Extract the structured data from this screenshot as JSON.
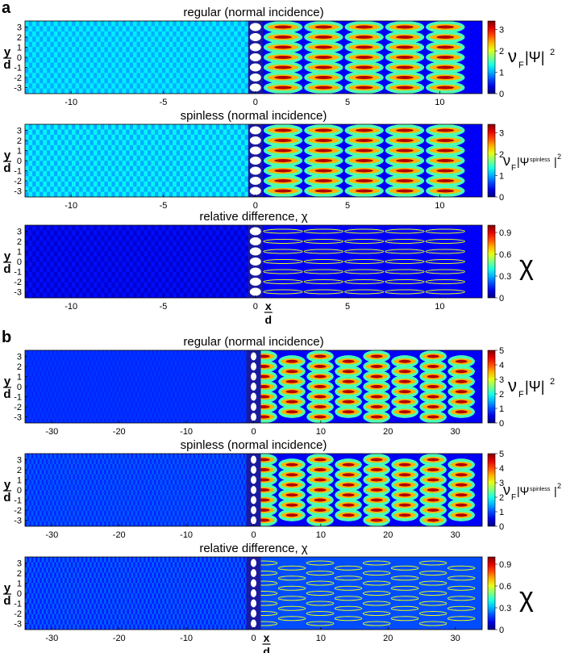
{
  "figure": {
    "type": "heatmap-panels",
    "colormap": "jet"
  },
  "chart_data": [
    {
      "type": "heatmap",
      "part": "a",
      "row": 0,
      "title": "regular (normal incidence)",
      "xlabel": "",
      "ylabel": "y/d",
      "xlim": [
        -12.5,
        12.3
      ],
      "ylim": [
        -3.6,
        3.6
      ],
      "xticks": [
        -10,
        -5,
        0,
        5,
        10
      ],
      "yticks": [
        3,
        2,
        1,
        0,
        -1,
        -2,
        -3
      ],
      "colorbar_ticks": [
        3,
        2,
        1,
        0
      ],
      "colorbar_range": [
        0,
        3.4
      ],
      "colorbar_label": "νF|Ψ|²",
      "left_mean": 1.0,
      "left_amp": 0.25,
      "right_max": 3.4,
      "right_bg": 0.4
    },
    {
      "type": "heatmap",
      "part": "a",
      "row": 1,
      "title": "spinless (normal incidence)",
      "xlabel": "",
      "ylabel": "y/d",
      "xlim": [
        -12.5,
        12.3
      ],
      "ylim": [
        -3.6,
        3.6
      ],
      "xticks": [
        -10,
        -5,
        0,
        5,
        10
      ],
      "yticks": [
        3,
        2,
        1,
        0,
        -1,
        -2,
        -3
      ],
      "colorbar_ticks": [
        3,
        2,
        1,
        0
      ],
      "colorbar_range": [
        0,
        3.4
      ],
      "colorbar_label": "νF|Ψspinless|²",
      "left_mean": 1.0,
      "left_amp": 0.3,
      "right_max": 3.4,
      "right_bg": 0.4
    },
    {
      "type": "heatmap",
      "part": "a",
      "row": 2,
      "title": "relative difference, χ",
      "xlabel": "x/d",
      "ylabel": "y/d",
      "xlim": [
        -12.5,
        12.3
      ],
      "ylim": [
        -3.6,
        3.6
      ],
      "xticks": [
        -10,
        -5,
        0,
        5,
        10
      ],
      "yticks": [
        3,
        2,
        1,
        0,
        -1,
        -2,
        -3
      ],
      "colorbar_ticks": [
        0.9,
        0.6,
        0.3,
        0
      ],
      "colorbar_range": [
        0,
        1.0
      ],
      "colorbar_label": "χ",
      "left_mean": 0.08,
      "left_amp": 0.06,
      "right_max": 0.9,
      "right_bg": 0.12
    },
    {
      "type": "heatmap",
      "part": "b",
      "row": 0,
      "title": "regular (normal incidence)",
      "xlabel": "",
      "ylabel": "y/d",
      "xlim": [
        -34,
        34
      ],
      "ylim": [
        -3.6,
        3.6
      ],
      "xticks": [
        -30,
        -20,
        -10,
        0,
        10,
        20,
        30
      ],
      "yticks": [
        3,
        2,
        1,
        0,
        -1,
        -2,
        -3
      ],
      "colorbar_ticks": [
        5,
        4,
        3,
        2,
        1,
        0
      ],
      "colorbar_range": [
        0,
        5
      ],
      "colorbar_label": "νF|Ψ|²",
      "left_mean": 0.8,
      "left_amp": 0.1,
      "right_max": 5,
      "right_bg": 0.6
    },
    {
      "type": "heatmap",
      "part": "b",
      "row": 1,
      "title": "spinless (normal incidence)",
      "xlabel": "",
      "ylabel": "y/d",
      "xlim": [
        -34,
        34
      ],
      "ylim": [
        -3.6,
        3.6
      ],
      "xticks": [
        -30,
        -20,
        -10,
        0,
        10,
        20,
        30
      ],
      "yticks": [
        3,
        2,
        1,
        0,
        -1,
        -2,
        -3
      ],
      "colorbar_ticks": [
        5,
        4,
        3,
        2,
        1,
        0
      ],
      "colorbar_range": [
        0,
        5
      ],
      "colorbar_label": "νF|Ψspinless|²",
      "left_mean": 0.8,
      "left_amp": 0.3,
      "right_max": 5,
      "right_bg": 0.6
    },
    {
      "type": "heatmap",
      "part": "b",
      "row": 2,
      "title": "relative difference, χ",
      "xlabel": "x/d",
      "ylabel": "y/d",
      "xlim": [
        -34,
        34
      ],
      "ylim": [
        -3.6,
        3.6
      ],
      "xticks": [
        -30,
        -20,
        -10,
        0,
        10,
        20,
        30
      ],
      "yticks": [
        3,
        2,
        1,
        0,
        -1,
        -2,
        -3
      ],
      "colorbar_ticks": [
        0.9,
        0.6,
        0.3,
        0
      ],
      "colorbar_range": [
        0,
        1.0
      ],
      "colorbar_label": "χ",
      "left_mean": 0.15,
      "left_amp": 0.08,
      "right_max": 0.9,
      "right_bg": 0.2
    }
  ],
  "labels": {
    "part_a": "a",
    "part_b": "b",
    "y_axis_y": "y",
    "y_axis_d": "d",
    "x_axis_x": "x",
    "x_axis_d": "d"
  },
  "legend_tokens": {
    "nu": "ν",
    "F": "F",
    "psi_sq": "|Ψ|",
    "psi_open": "|Ψ",
    "spinless_sup": "spinless",
    "close_bar": "|",
    "sq": "2",
    "chi": "χ"
  }
}
